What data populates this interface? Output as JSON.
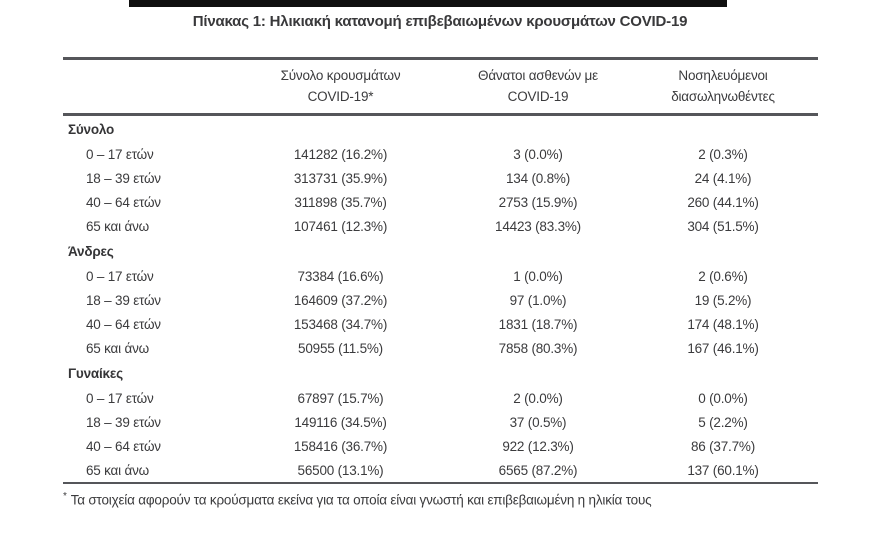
{
  "title": "Πίνακας 1: Ηλικιακή κατανομή επιβεβαιωμένων κρουσμάτων COVID-19",
  "colors": {
    "text": "#3b3b3d",
    "rule": "#55565a",
    "top_bar": "#0f0f0f",
    "background": "#ffffff"
  },
  "table": {
    "headers": [
      {
        "line1": "Σύνολο κρουσμάτων",
        "line2": "COVID-19*"
      },
      {
        "line1": "Θάνατοι ασθενών με",
        "line2": "COVID-19"
      },
      {
        "line1": "Νοσηλευόμενοι",
        "line2": "διασωληνωθέντες"
      }
    ],
    "sections": [
      {
        "label": "Σύνολο",
        "rows": [
          {
            "age": "0 – 17 ετών",
            "cases": "141282 (16.2%)",
            "deaths": "3 (0.0%)",
            "intubated": "2 (0.3%)"
          },
          {
            "age": "18 – 39 ετών",
            "cases": "313731 (35.9%)",
            "deaths": "134 (0.8%)",
            "intubated": "24 (4.1%)"
          },
          {
            "age": "40 – 64 ετών",
            "cases": "311898 (35.7%)",
            "deaths": "2753 (15.9%)",
            "intubated": "260 (44.1%)"
          },
          {
            "age": "65 και άνω",
            "cases": "107461 (12.3%)",
            "deaths": "14423 (83.3%)",
            "intubated": "304 (51.5%)"
          }
        ]
      },
      {
        "label": "Άνδρες",
        "rows": [
          {
            "age": "0 – 17 ετών",
            "cases": "73384 (16.6%)",
            "deaths": "1 (0.0%)",
            "intubated": "2 (0.6%)"
          },
          {
            "age": "18 – 39 ετών",
            "cases": "164609 (37.2%)",
            "deaths": "97 (1.0%)",
            "intubated": "19 (5.2%)"
          },
          {
            "age": "40 – 64 ετών",
            "cases": "153468 (34.7%)",
            "deaths": "1831 (18.7%)",
            "intubated": "174 (48.1%)"
          },
          {
            "age": "65 και άνω",
            "cases": "50955 (11.5%)",
            "deaths": "7858 (80.3%)",
            "intubated": "167 (46.1%)"
          }
        ]
      },
      {
        "label": "Γυναίκες",
        "rows": [
          {
            "age": "0 – 17 ετών",
            "cases": "67897 (15.7%)",
            "deaths": "2 (0.0%)",
            "intubated": "0 (0.0%)"
          },
          {
            "age": "18 – 39 ετών",
            "cases": "149116 (34.5%)",
            "deaths": "37 (0.5%)",
            "intubated": "5 (2.2%)"
          },
          {
            "age": "40 – 64 ετών",
            "cases": "158416 (36.7%)",
            "deaths": "922 (12.3%)",
            "intubated": "86 (37.7%)"
          },
          {
            "age": "65 και άνω",
            "cases": "56500 (13.1%)",
            "deaths": "6565 (87.2%)",
            "intubated": "137 (60.1%)"
          }
        ]
      }
    ],
    "footnote_marker": "*",
    "footnote": "Τα στοιχεία αφορούν τα κρούσματα εκείνα για τα οποία είναι γνωστή και επιβεβαιωμένη η ηλικία τους"
  }
}
